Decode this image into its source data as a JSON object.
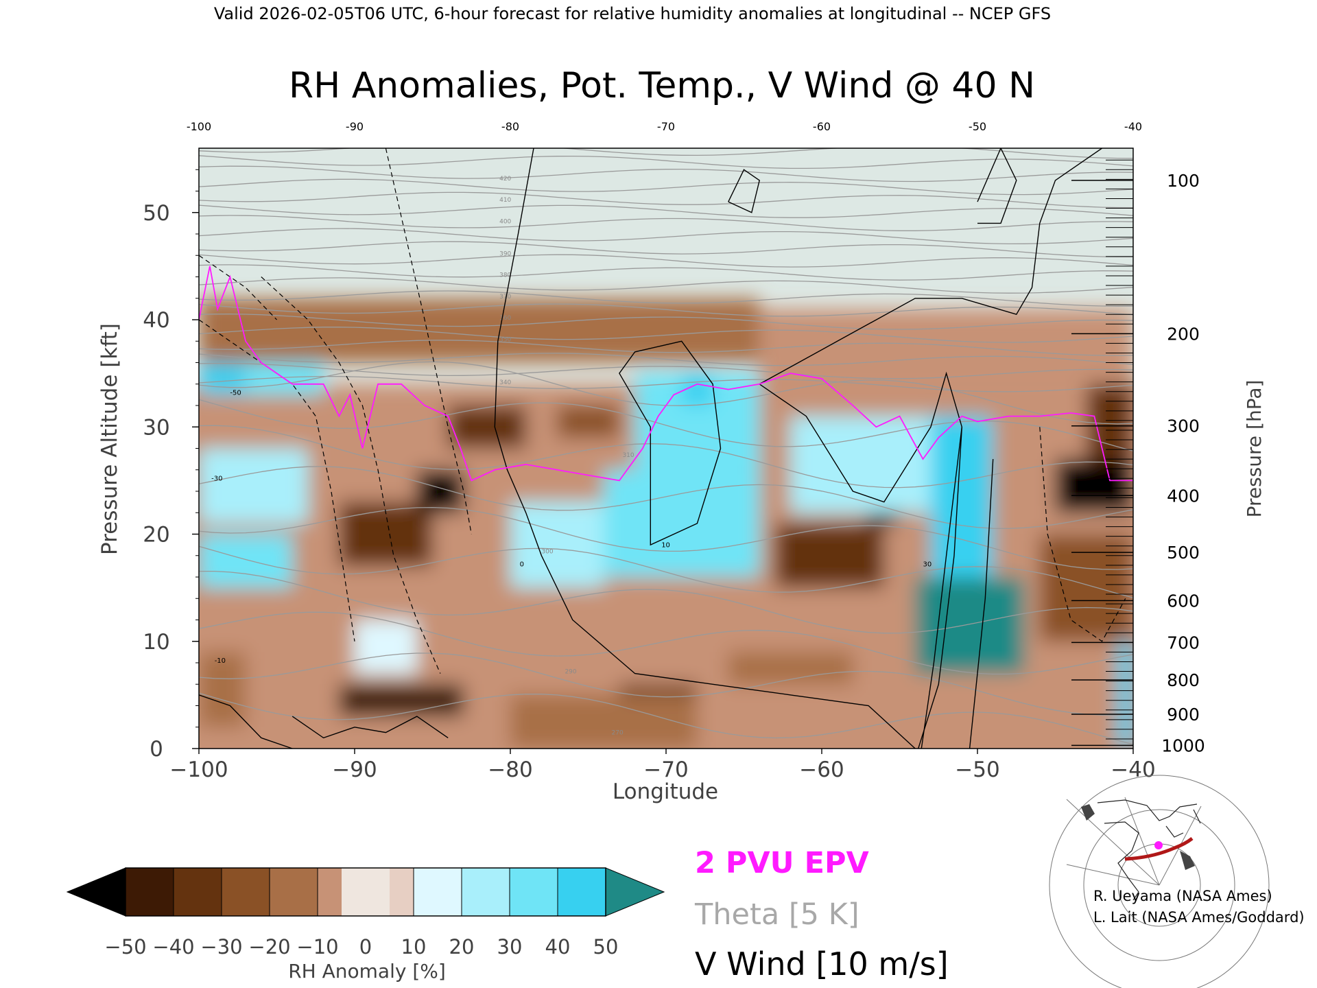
{
  "header": {
    "valid_line": "Valid 2026-02-05T06 UTC, 6-hour forecast for relative humidity anomalies at longitudinal -- NCEP GFS"
  },
  "chart_data": {
    "type": "heatmap",
    "title": "RH Anomalies, Pot. Temp., V Wind @ 40 N",
    "xlabel": "Longitude",
    "ylabel_left": "Pressure Altitude [kft]",
    "ylabel_right": "Pressure [hPa]",
    "xlim": [
      -100,
      -40
    ],
    "ylim": [
      0,
      56
    ],
    "x_ticks": [
      "-100",
      "-90",
      "-80",
      "-70",
      "-60",
      "-50",
      "-40"
    ],
    "x_ticks_top": [
      "-100",
      "-90",
      "-80",
      "-70",
      "-60",
      "-50",
      "-40"
    ],
    "y_ticks": [
      "0",
      "10",
      "20",
      "30",
      "40",
      "50"
    ],
    "pressure_ticks": [
      {
        "label": "100",
        "kft": 53
      },
      {
        "label": "200",
        "kft": 38.7
      },
      {
        "label": "300",
        "kft": 30.1
      },
      {
        "label": "400",
        "kft": 23.6
      },
      {
        "label": "500",
        "kft": 18.3
      },
      {
        "label": "600",
        "kft": 13.8
      },
      {
        "label": "700",
        "kft": 9.9
      },
      {
        "label": "800",
        "kft": 6.4
      },
      {
        "label": "900",
        "kft": 3.2
      },
      {
        "label": "1000",
        "kft": 0.3
      }
    ],
    "colorbar": {
      "label": "RH Anomaly [%]",
      "ticks": [
        "-50",
        "-40",
        "-30",
        "-20",
        "-10",
        "0",
        "10",
        "20",
        "30",
        "40",
        "50"
      ],
      "colors": [
        "#000000",
        "#3d1a05",
        "#64330f",
        "#8a5126",
        "#a86f47",
        "#c79276",
        "#e7cfc3",
        "#dff8ff",
        "#a9effb",
        "#6fe4f6",
        "#37d0f0",
        "#1fb0d8",
        "#0b8aa8",
        "#1f8a86"
      ]
    },
    "legend": [
      {
        "label": "2 PVU EPV",
        "color": "#ff1aff"
      },
      {
        "label": "Theta [5 K]",
        "color": "#a8a8a8"
      },
      {
        "label": "V Wind [10 m/s]",
        "color": "#000000"
      }
    ],
    "theta_labels": [
      "270",
      "290",
      "300",
      "310",
      "340",
      "350",
      "360",
      "370",
      "380",
      "390",
      "400",
      "410",
      "420"
    ],
    "wind_labels": [
      "-50",
      "-30",
      "-10",
      "0",
      "10",
      "30"
    ],
    "rh_cells": [
      {
        "lon": [
          -100,
          -97
        ],
        "kft": [
          33,
          42
        ],
        "v": 45
      },
      {
        "lon": [
          -97,
          -92
        ],
        "kft": [
          33,
          40
        ],
        "v": 30
      },
      {
        "lon": [
          -100,
          -93
        ],
        "kft": [
          21,
          28
        ],
        "v": 25
      },
      {
        "lon": [
          -100,
          -94
        ],
        "kft": [
          15,
          20
        ],
        "v": 30
      },
      {
        "lon": [
          -100,
          -97
        ],
        "kft": [
          2,
          9
        ],
        "v": -20
      },
      {
        "lon": [
          -91,
          -85
        ],
        "kft": [
          17,
          23
        ],
        "v": -35
      },
      {
        "lon": [
          -86,
          -83
        ],
        "kft": [
          22,
          26
        ],
        "v": -50
      },
      {
        "lon": [
          -84,
          -79
        ],
        "kft": [
          28,
          32
        ],
        "v": -40
      },
      {
        "lon": [
          -91,
          -83
        ],
        "kft": [
          3,
          6
        ],
        "v": -45
      },
      {
        "lon": [
          -90,
          -86
        ],
        "kft": [
          7,
          12
        ],
        "v": 15
      },
      {
        "lon": [
          -80,
          -74
        ],
        "kft": [
          15,
          23
        ],
        "v": 20
      },
      {
        "lon": [
          -74,
          -64
        ],
        "kft": [
          16,
          26
        ],
        "v": 30
      },
      {
        "lon": [
          -72,
          -64
        ],
        "kft": [
          26,
          35
        ],
        "v": 35
      },
      {
        "lon": [
          -69,
          -67
        ],
        "kft": [
          32,
          35
        ],
        "v": 45
      },
      {
        "lon": [
          -77,
          -73
        ],
        "kft": [
          29,
          32
        ],
        "v": -25
      },
      {
        "lon": [
          -63,
          -56
        ],
        "kft": [
          15,
          21
        ],
        "v": -40
      },
      {
        "lon": [
          -57,
          -55
        ],
        "kft": [
          21,
          24
        ],
        "v": -50
      },
      {
        "lon": [
          -62,
          -53
        ],
        "kft": [
          22,
          31
        ],
        "v": 25
      },
      {
        "lon": [
          -54,
          -47
        ],
        "kft": [
          7,
          16
        ],
        "v": 50
      },
      {
        "lon": [
          -53,
          -49
        ],
        "kft": [
          16,
          31
        ],
        "v": 40
      },
      {
        "lon": [
          -45,
          -40
        ],
        "kft": [
          22,
          27
        ],
        "v": -50
      },
      {
        "lon": [
          -46,
          -40
        ],
        "kft": [
          10,
          20
        ],
        "v": -30
      },
      {
        "lon": [
          -43,
          -40
        ],
        "kft": [
          27,
          34
        ],
        "v": -40
      },
      {
        "lon": [
          -41,
          -40
        ],
        "kft": [
          0,
          10
        ],
        "v": 40
      },
      {
        "lon": [
          -73,
          -68
        ],
        "kft": [
          4,
          6
        ],
        "v": -35
      },
      {
        "lon": [
          -66,
          -58
        ],
        "kft": [
          6,
          9
        ],
        "v": -15
      },
      {
        "lon": [
          -80,
          -68
        ],
        "kft": [
          0,
          5
        ],
        "v": -15
      },
      {
        "lon": [
          -100,
          -64
        ],
        "kft": [
          36,
          42
        ],
        "v": -12
      },
      {
        "lon": [
          -64,
          -40
        ],
        "kft": [
          34,
          41
        ],
        "v": -10
      }
    ]
  },
  "credits": {
    "line1": "R. Ueyama (NASA Ames)",
    "line2": "L. Lait (NASA Ames/Goddard)"
  }
}
